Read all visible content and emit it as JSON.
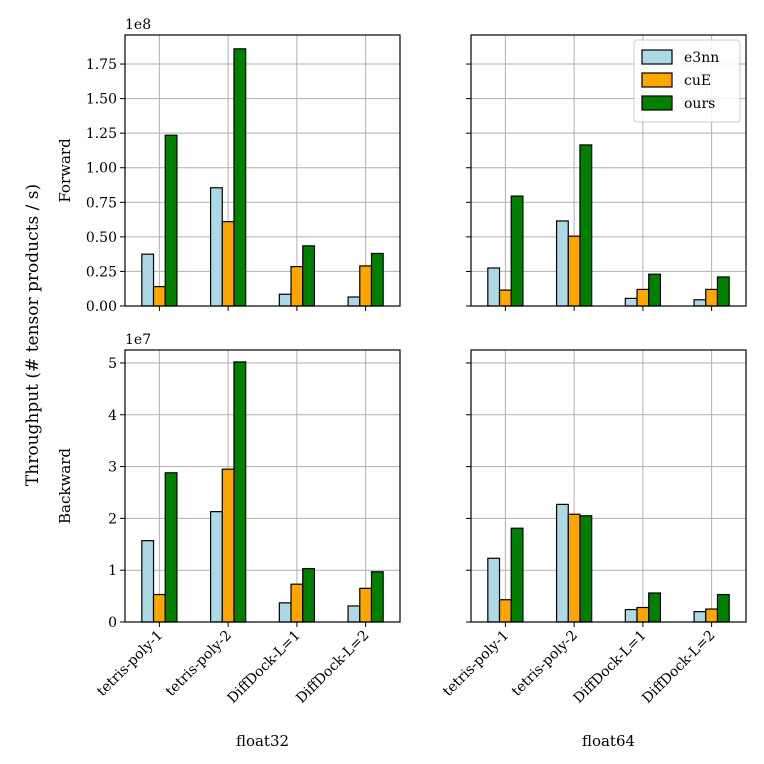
{
  "chart_data": {
    "type": "bar",
    "ylabel": "Throughput (# tensor products / s)",
    "categories": [
      "tetris-poly-1",
      "tetris-poly-2",
      "DiffDock-L=1",
      "DiffDock-L=2"
    ],
    "series_names": [
      "e3nn",
      "cuE",
      "ours"
    ],
    "colors": {
      "e3nn": "#add8e6",
      "cuE": "#ffa500",
      "ours": "#008000"
    },
    "legend_position": "top-right",
    "grid": true,
    "panels": [
      {
        "row_label": "Forward",
        "column_label": "",
        "multiplier": "1e8",
        "ylim": [
          0,
          1.96
        ],
        "yticks": [
          "0.00",
          "0.25",
          "0.50",
          "0.75",
          "1.00",
          "1.25",
          "1.50",
          "1.75"
        ],
        "ytick_values": [
          0,
          0.25,
          0.5,
          0.75,
          1.0,
          1.25,
          1.5,
          1.75
        ],
        "series": [
          {
            "name": "e3nn",
            "values": [
              0.375,
              0.855,
              0.085,
              0.065
            ]
          },
          {
            "name": "cuE",
            "values": [
              0.14,
              0.61,
              0.285,
              0.29
            ]
          },
          {
            "name": "ours",
            "values": [
              1.235,
              1.86,
              0.435,
              0.38
            ]
          }
        ]
      },
      {
        "row_label": "",
        "column_label": "",
        "multiplier": "",
        "ylim": [
          0,
          1.96
        ],
        "yticks": [],
        "ytick_values": [
          0,
          0.25,
          0.5,
          0.75,
          1.0,
          1.25,
          1.5,
          1.75
        ],
        "series": [
          {
            "name": "e3nn",
            "values": [
              0.275,
              0.615,
              0.055,
              0.045
            ]
          },
          {
            "name": "cuE",
            "values": [
              0.115,
              0.505,
              0.12,
              0.12
            ]
          },
          {
            "name": "ours",
            "values": [
              0.795,
              1.165,
              0.23,
              0.21
            ]
          }
        ]
      },
      {
        "row_label": "Backward",
        "column_label": "float32",
        "multiplier": "1e7",
        "ylim": [
          0,
          5.25
        ],
        "yticks": [
          "0",
          "1",
          "2",
          "3",
          "4",
          "5"
        ],
        "ytick_values": [
          0,
          1,
          2,
          3,
          4,
          5
        ],
        "series": [
          {
            "name": "e3nn",
            "values": [
              1.57,
              2.13,
              0.37,
              0.31
            ]
          },
          {
            "name": "cuE",
            "values": [
              0.53,
              2.95,
              0.73,
              0.65
            ]
          },
          {
            "name": "ours",
            "values": [
              2.88,
              5.02,
              1.03,
              0.97
            ]
          }
        ]
      },
      {
        "row_label": "",
        "column_label": "float64",
        "multiplier": "",
        "ylim": [
          0,
          5.25
        ],
        "yticks": [],
        "ytick_values": [
          0,
          1,
          2,
          3,
          4,
          5
        ],
        "series": [
          {
            "name": "e3nn",
            "values": [
              1.23,
              2.27,
              0.24,
              0.2
            ]
          },
          {
            "name": "cuE",
            "values": [
              0.43,
              2.08,
              0.28,
              0.25
            ]
          },
          {
            "name": "ours",
            "values": [
              1.81,
              2.05,
              0.56,
              0.53
            ]
          }
        ]
      }
    ]
  }
}
